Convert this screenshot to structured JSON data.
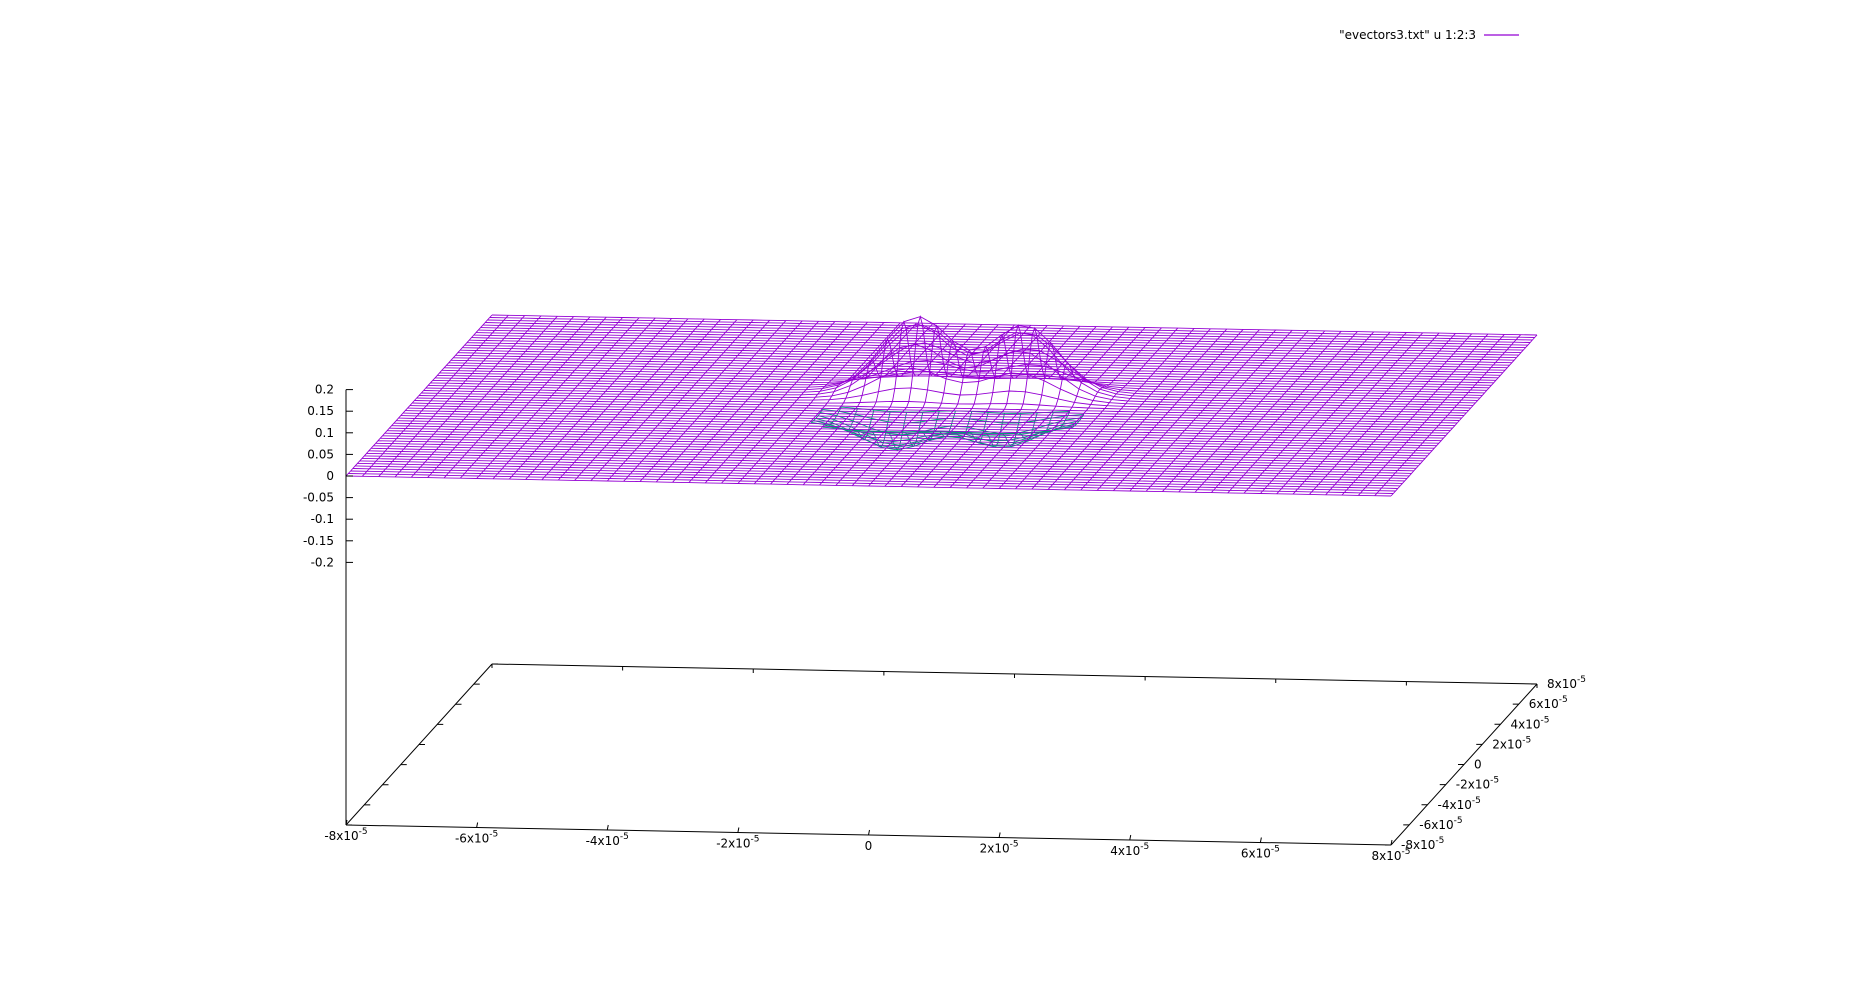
{
  "chart_data": {
    "type": "surface",
    "legend": {
      "label": "\"evectors3.txt\" u 1:2:3",
      "placement": "top-right"
    },
    "colors": {
      "surface_top": "#9400d3",
      "surface_bottom": "#009e73",
      "axis": "#000000",
      "background": "#ffffff"
    },
    "x_range": [
      -8e-05,
      8e-05
    ],
    "y_range": [
      -8e-05,
      8e-05
    ],
    "z_range": [
      -0.2,
      0.2
    ],
    "grid": false,
    "z_ticks": [
      {
        "value": 0.2,
        "label": "0.2"
      },
      {
        "value": 0.15,
        "label": "0.15"
      },
      {
        "value": 0.1,
        "label": "0.1"
      },
      {
        "value": 0.05,
        "label": "0.05"
      },
      {
        "value": 0,
        "label": "0"
      },
      {
        "value": -0.05,
        "label": "-0.05"
      },
      {
        "value": -0.1,
        "label": "-0.1"
      },
      {
        "value": -0.15,
        "label": "-0.15"
      },
      {
        "value": -0.2,
        "label": "-0.2"
      }
    ],
    "x_ticks": [
      {
        "value": -8e-05,
        "mantissa": "-8",
        "base": "x10",
        "exp": "-5"
      },
      {
        "value": -6e-05,
        "mantissa": "-6",
        "base": "x10",
        "exp": "-5"
      },
      {
        "value": -4e-05,
        "mantissa": "-4",
        "base": "x10",
        "exp": "-5"
      },
      {
        "value": -2e-05,
        "mantissa": "-2",
        "base": "x10",
        "exp": "-5"
      },
      {
        "value": 0,
        "mantissa": "0",
        "base": "",
        "exp": ""
      },
      {
        "value": 2e-05,
        "mantissa": "2",
        "base": "x10",
        "exp": "-5"
      },
      {
        "value": 4e-05,
        "mantissa": "4",
        "base": "x10",
        "exp": "-5"
      },
      {
        "value": 6e-05,
        "mantissa": "6",
        "base": "x10",
        "exp": "-5"
      },
      {
        "value": 8e-05,
        "mantissa": "8",
        "base": "x10",
        "exp": "-5"
      }
    ],
    "y_ticks": [
      {
        "value": -8e-05,
        "mantissa": "-8",
        "base": "x10",
        "exp": "-5"
      },
      {
        "value": -6e-05,
        "mantissa": "-6",
        "base": "x10",
        "exp": "-5"
      },
      {
        "value": -4e-05,
        "mantissa": "-4",
        "base": "x10",
        "exp": "-5"
      },
      {
        "value": -2e-05,
        "mantissa": "-2",
        "base": "x10",
        "exp": "-5"
      },
      {
        "value": 0,
        "mantissa": "0",
        "base": "",
        "exp": ""
      },
      {
        "value": 2e-05,
        "mantissa": "2",
        "base": "x10",
        "exp": "-5"
      },
      {
        "value": 4e-05,
        "mantissa": "4",
        "base": "x10",
        "exp": "-5"
      },
      {
        "value": 6e-05,
        "mantissa": "6",
        "base": "x10",
        "exp": "-5"
      },
      {
        "value": 8e-05,
        "mantissa": "8",
        "base": "x10",
        "exp": "-5"
      }
    ],
    "grid_samples": 64,
    "surface": {
      "baseline": 0,
      "bumps": [
        {
          "x": -5.5e-06,
          "y": 1.2e-05,
          "amplitude": 0.175,
          "width": 7.5e-06
        },
        {
          "x": 1.1e-05,
          "y": 1.2e-05,
          "amplitude": 0.16,
          "width": 7.5e-06
        },
        {
          "x": -5.5e-06,
          "y": -1.2e-05,
          "amplitude": -0.075,
          "width": 7.5e-06
        },
        {
          "x": 1.1e-05,
          "y": -1.2e-05,
          "amplitude": -0.065,
          "width": 7.5e-06
        }
      ]
    }
  }
}
